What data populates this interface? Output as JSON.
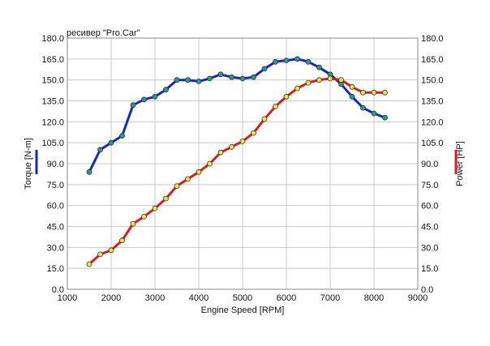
{
  "chart_data": {
    "type": "line",
    "title": "ресивер \"Pro.Car\"",
    "xlabel": "Engine Speed [RPM]",
    "ylabel_left": "Torque [N-m]",
    "ylabel_right": "Power [HP]",
    "xlim": [
      1000,
      9000
    ],
    "ylim_left": [
      0,
      180
    ],
    "ylim_right": [
      0,
      180
    ],
    "x_ticks": [
      "1000",
      "2000",
      "3000",
      "4000",
      "5000",
      "6000",
      "7000",
      "8000",
      "9000"
    ],
    "y_ticks_left": [
      "0.0",
      "15.0",
      "30.0",
      "45.0",
      "60.0",
      "75.0",
      "90.0",
      "105.0",
      "120.0",
      "135.0",
      "150.0",
      "165.0",
      "180.0"
    ],
    "y_ticks_right": [
      "0.0",
      "15.0",
      "30.0",
      "45.0",
      "60.0",
      "75.0",
      "90.0",
      "105.0",
      "120.0",
      "135.0",
      "150.0",
      "165.0",
      "180.0"
    ],
    "grid": true,
    "series": [
      {
        "name": "Torque [N-m]",
        "axis": "left",
        "color": "#1428c8",
        "marker_color": "#2a9a8a",
        "x": [
          1500,
          1750,
          2000,
          2250,
          2500,
          2750,
          3000,
          3250,
          3500,
          3750,
          4000,
          4250,
          4500,
          4750,
          5000,
          5250,
          5500,
          5750,
          6000,
          6250,
          6500,
          6750,
          7000,
          7250,
          7500,
          7750,
          8000,
          8250
        ],
        "y": [
          84,
          100,
          105,
          110,
          132,
          136,
          138,
          143,
          150,
          150,
          149,
          151,
          154,
          152,
          151,
          152,
          158,
          163,
          164,
          165,
          163,
          159,
          154,
          147,
          138,
          130,
          126,
          123
        ]
      },
      {
        "name": "Power [HP]",
        "axis": "right",
        "color": "#e01a1a",
        "marker_color": "#e6e64a",
        "x": [
          1500,
          1750,
          2000,
          2250,
          2500,
          2750,
          3000,
          3250,
          3500,
          3750,
          4000,
          4250,
          4500,
          4750,
          5000,
          5250,
          5500,
          5750,
          6000,
          6250,
          6500,
          6750,
          7000,
          7250,
          7500,
          7750,
          8000,
          8250
        ],
        "y": [
          18,
          25,
          28,
          35,
          47,
          52,
          58,
          65,
          74,
          79,
          84,
          90,
          98,
          102,
          106,
          112,
          122,
          131,
          138,
          144,
          148,
          150,
          151,
          150,
          145,
          141,
          141,
          141
        ]
      }
    ]
  }
}
